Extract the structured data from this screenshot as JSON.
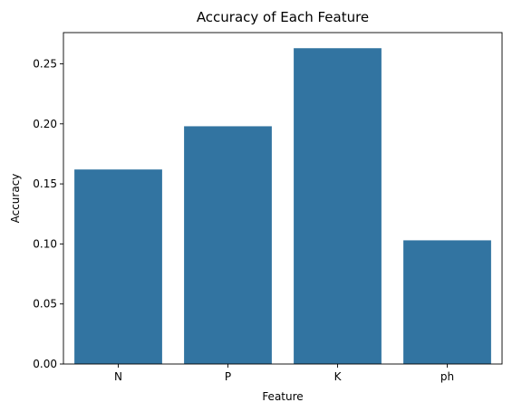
{
  "chart_data": {
    "type": "bar",
    "title": "Accuracy of Each Feature",
    "xlabel": "Feature",
    "ylabel": "Accuracy",
    "categories": [
      "N",
      "P",
      "K",
      "ph"
    ],
    "values": [
      0.162,
      0.198,
      0.263,
      0.103
    ],
    "ylim": [
      0,
      0.276
    ],
    "yticks": [
      "0.00",
      "0.05",
      "0.10",
      "0.15",
      "0.20",
      "0.25"
    ],
    "bar_color": "#3274a1",
    "grid": false,
    "legend": "none"
  }
}
